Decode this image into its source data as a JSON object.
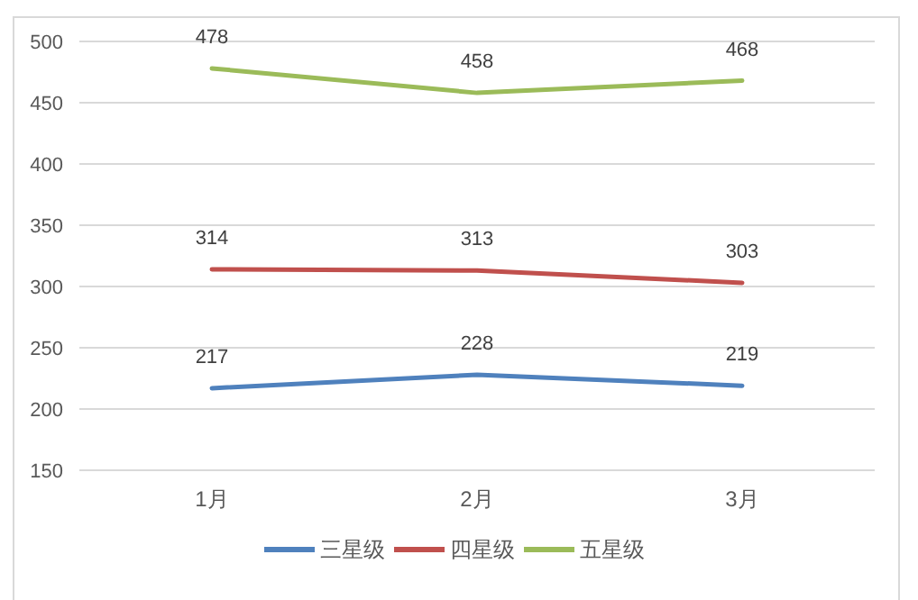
{
  "chart_data": {
    "type": "line",
    "categories": [
      "1月",
      "2月",
      "3月"
    ],
    "series": [
      {
        "name": "三星级",
        "color": "#4f81bd",
        "values": [
          217,
          228,
          219
        ]
      },
      {
        "name": "四星级",
        "color": "#c0504d",
        "values": [
          314,
          313,
          303
        ]
      },
      {
        "name": "五星级",
        "color": "#9bbb59",
        "values": [
          478,
          458,
          468
        ]
      }
    ],
    "ylim": [
      150,
      500
    ],
    "yticks": [
      150,
      200,
      250,
      300,
      350,
      400,
      450,
      500
    ],
    "grid": "y",
    "legend": "bottom",
    "data_labels": true,
    "marker": "none",
    "line_style": "solid"
  }
}
